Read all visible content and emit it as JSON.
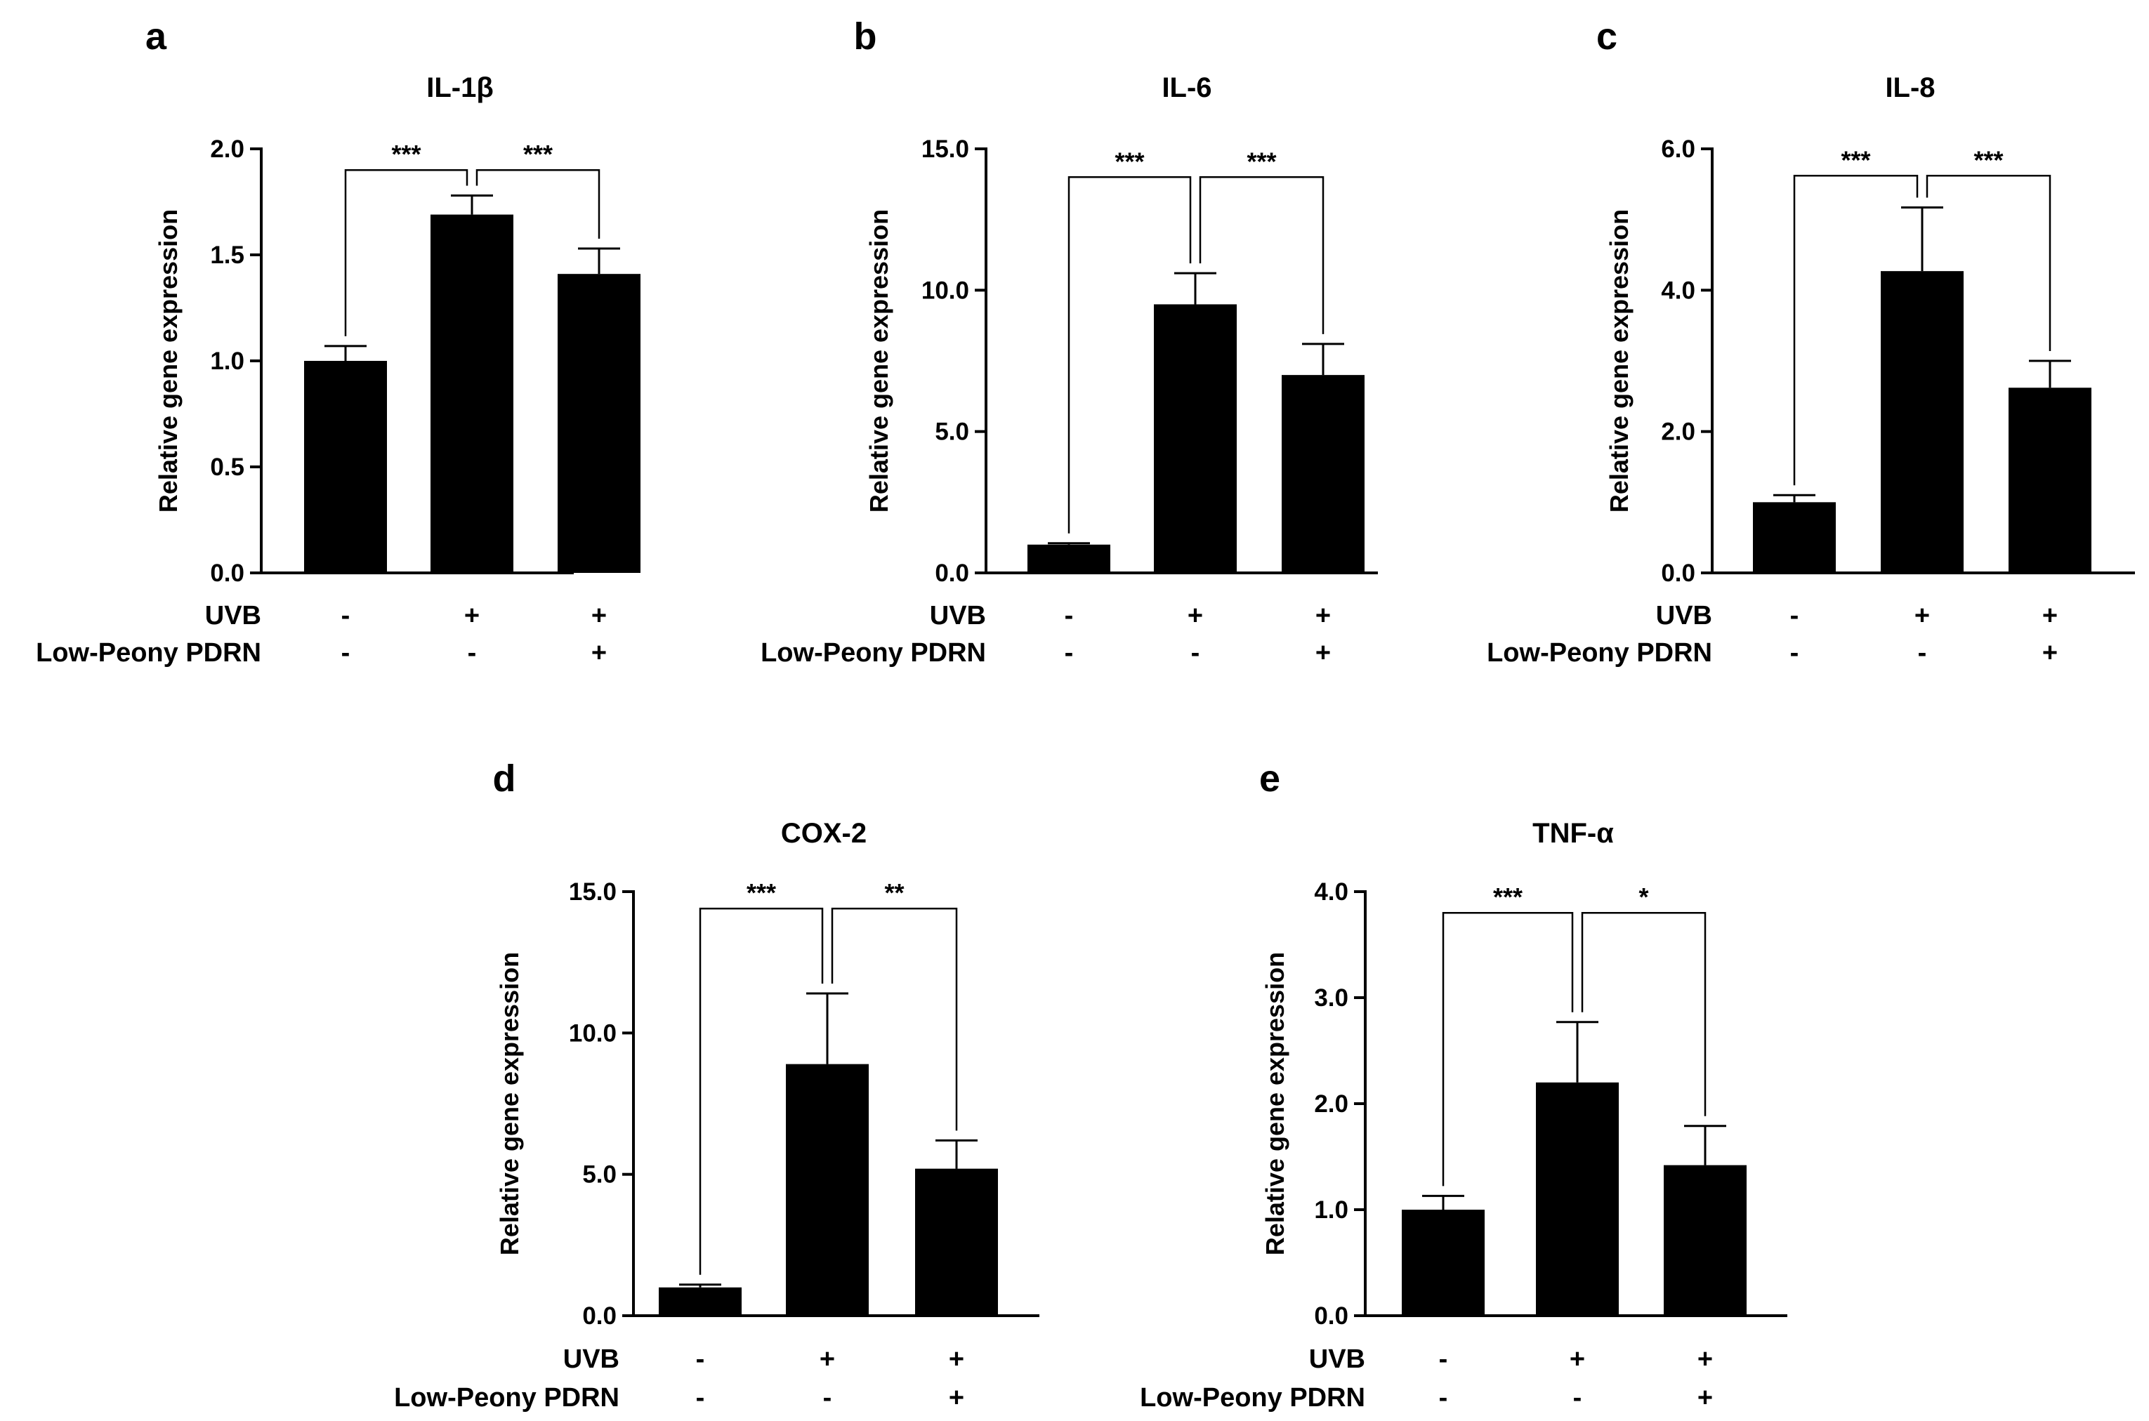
{
  "figure": {
    "row_labels": [
      "UVB",
      "Low-Peony PDRN"
    ]
  },
  "chart_data": [
    {
      "panel": "a",
      "type": "bar",
      "title": "IL-1β",
      "ylabel": "Relative gene expression",
      "ylim": [
        0,
        2.0
      ],
      "yticks": [
        0,
        0.5,
        1.0,
        1.5,
        2.0
      ],
      "tick_decimals": 1,
      "uvb": [
        "-",
        "+",
        "+"
      ],
      "pdrn": [
        "-",
        "-",
        "+"
      ],
      "values": [
        1.0,
        1.69,
        1.41
      ],
      "errors": [
        0.07,
        0.09,
        0.12
      ],
      "brackets": [
        {
          "from": 0,
          "to": 1,
          "label": "***",
          "top": 1.9
        },
        {
          "from": 1,
          "to": 2,
          "label": "***",
          "top": 1.9
        }
      ]
    },
    {
      "panel": "b",
      "type": "bar",
      "title": "IL-6",
      "ylabel": "Relative gene expression",
      "ylim": [
        0,
        15.0
      ],
      "yticks": [
        0,
        5,
        10,
        15
      ],
      "tick_decimals": 1,
      "uvb": [
        "-",
        "+",
        "+"
      ],
      "pdrn": [
        "-",
        "-",
        "+"
      ],
      "values": [
        1.0,
        9.5,
        7.0
      ],
      "errors": [
        0.05,
        1.1,
        1.1
      ],
      "brackets": [
        {
          "from": 0,
          "to": 1,
          "label": "***",
          "top": 14.0
        },
        {
          "from": 1,
          "to": 2,
          "label": "***",
          "top": 14.0
        }
      ]
    },
    {
      "panel": "c",
      "type": "bar",
      "title": "IL-8",
      "ylabel": "Relative gene expression",
      "ylim": [
        0,
        6.0
      ],
      "yticks": [
        0,
        2,
        4,
        6
      ],
      "tick_decimals": 1,
      "uvb": [
        "-",
        "+",
        "+"
      ],
      "pdrn": [
        "-",
        "-",
        "+"
      ],
      "values": [
        1.0,
        4.27,
        2.62
      ],
      "errors": [
        0.1,
        0.9,
        0.38
      ],
      "brackets": [
        {
          "from": 0,
          "to": 1,
          "label": "***",
          "top": 5.62
        },
        {
          "from": 1,
          "to": 2,
          "label": "***",
          "top": 5.62
        }
      ]
    },
    {
      "panel": "d",
      "type": "bar",
      "title": "COX-2",
      "ylabel": "Relative gene expression",
      "ylim": [
        0,
        15.0
      ],
      "yticks": [
        0,
        5,
        10,
        15
      ],
      "tick_decimals": 1,
      "uvb": [
        "-",
        "+",
        "+"
      ],
      "pdrn": [
        "-",
        "-",
        "+"
      ],
      "values": [
        1.0,
        8.9,
        5.2
      ],
      "errors": [
        0.1,
        2.5,
        1.0
      ],
      "brackets": [
        {
          "from": 0,
          "to": 1,
          "label": "***",
          "top": 14.4
        },
        {
          "from": 1,
          "to": 2,
          "label": "**",
          "top": 14.4
        }
      ]
    },
    {
      "panel": "e",
      "type": "bar",
      "title": "TNF-α",
      "ylabel": "Relative gene expression",
      "ylim": [
        0,
        4.0
      ],
      "yticks": [
        0,
        1,
        2,
        3,
        4
      ],
      "tick_decimals": 1,
      "uvb": [
        "-",
        "+",
        "+"
      ],
      "pdrn": [
        "-",
        "-",
        "+"
      ],
      "values": [
        1.0,
        2.2,
        1.42
      ],
      "errors": [
        0.13,
        0.57,
        0.37
      ],
      "brackets": [
        {
          "from": 0,
          "to": 1,
          "label": "***",
          "top": 3.8
        },
        {
          "from": 1,
          "to": 2,
          "label": "*",
          "top": 3.8
        }
      ]
    }
  ]
}
